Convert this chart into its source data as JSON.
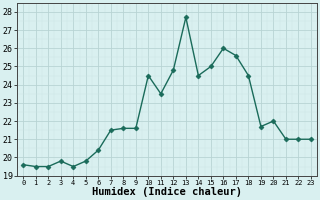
{
  "x": [
    0,
    1,
    2,
    3,
    4,
    5,
    6,
    7,
    8,
    9,
    10,
    11,
    12,
    13,
    14,
    15,
    16,
    17,
    18,
    19,
    20,
    21,
    22,
    23
  ],
  "y": [
    19.6,
    19.5,
    19.5,
    19.8,
    19.5,
    19.8,
    20.4,
    21.5,
    21.6,
    21.6,
    24.5,
    23.5,
    24.8,
    27.7,
    24.5,
    25.0,
    26.0,
    25.6,
    24.5,
    21.7,
    22.0,
    21.0,
    21.0,
    21.0
  ],
  "line_color": "#1a6b5a",
  "marker": "D",
  "markersize": 2.5,
  "linewidth": 1.0,
  "bg_color": "#d9f0f0",
  "grid_major_color": "#b8d4d4",
  "grid_minor_color": "#cce4e4",
  "xlabel": "Humidex (Indice chaleur)",
  "xlabel_fontsize": 7.5,
  "xlim": [
    -0.5,
    23.5
  ],
  "ylim": [
    19.0,
    28.5
  ],
  "yticks": [
    19,
    20,
    21,
    22,
    23,
    24,
    25,
    26,
    27,
    28
  ],
  "xticks": [
    0,
    1,
    2,
    3,
    4,
    5,
    6,
    7,
    8,
    9,
    10,
    11,
    12,
    13,
    14,
    15,
    16,
    17,
    18,
    19,
    20,
    21,
    22,
    23
  ],
  "ytick_fontsize": 6.0,
  "xtick_fontsize": 5.0
}
